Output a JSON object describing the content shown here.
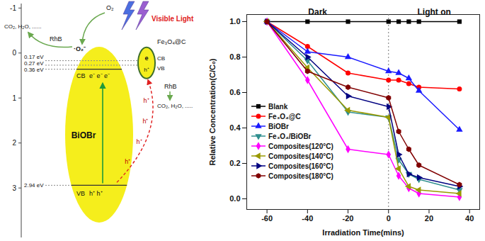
{
  "diagram": {
    "ylim": [
      -1.1,
      4.1
    ],
    "yticks": [
      -1,
      0,
      1,
      2,
      3
    ],
    "levels": [
      {
        "value": 0.17,
        "label": "0.17 eV"
      },
      {
        "value": 0.27,
        "label": "0.27 eV"
      },
      {
        "value": 0.36,
        "label": "0.36 eV"
      },
      {
        "value": 2.94,
        "label": "2.94 eV"
      }
    ],
    "light": "Visible Light",
    "main_band": {
      "label": "BiOBr",
      "cb": "CB",
      "vb": "VB",
      "electrons": "e⁻ e⁻ e⁻",
      "holes": "h⁺ h⁺"
    },
    "small_band": {
      "label": "Fe₃O₄@C",
      "cb": "CB",
      "vb": "VB",
      "electron": "e",
      "hole": "h⁺"
    },
    "transfer_holes": [
      "h⁺",
      "h⁺",
      "h⁺",
      "h⁺"
    ],
    "left_reaction": {
      "oxidant": "O₂",
      "radical": "·O₂⁻",
      "pollutant": "RhB",
      "products": "CO₂, H₂O, ......"
    },
    "right_reaction": {
      "pollutant": "RhB",
      "products": "CO₂, H₂O, ....."
    }
  },
  "chart_data": {
    "type": "line",
    "x_label": "Irradiation Time(mins)",
    "y_label": "Relative Concentration(C/C₀)",
    "annotations": [
      "Dark",
      "Light on"
    ],
    "light_on": 0,
    "x": [
      -60,
      -40,
      -20,
      0,
      5,
      10,
      15,
      35
    ],
    "xlim": [
      -70,
      45
    ],
    "xticks": [
      -60,
      -40,
      -20,
      0,
      20,
      40
    ],
    "ylim": [
      -0.06,
      1.04
    ],
    "yticks": [
      {
        "value": 0,
        "label": "0.0"
      },
      {
        "value": 0.2,
        "label": "0.2"
      },
      {
        "value": 0.4,
        "label": "0.4"
      },
      {
        "value": 0.6,
        "label": "0.6"
      },
      {
        "value": 0.8,
        "label": "0.8"
      },
      {
        "value": 1,
        "label": "1.0"
      }
    ],
    "legend": "left",
    "series": [
      {
        "name": "Blank",
        "color": "#000000",
        "marker": "square",
        "values": [
          1.0,
          1.0,
          1.0,
          1.0,
          1.0,
          1.0,
          1.0,
          1.0
        ]
      },
      {
        "name": "Fe₃O₄@C",
        "color": "#ff0000",
        "marker": "circle",
        "values": [
          1.0,
          0.86,
          0.71,
          0.67,
          0.67,
          0.65,
          0.63,
          0.62
        ]
      },
      {
        "name": "BiOBr",
        "color": "#1a1aff",
        "marker": "triangle",
        "values": [
          1.0,
          0.83,
          0.8,
          0.72,
          0.71,
          0.68,
          0.61,
          0.39
        ]
      },
      {
        "name": "Fe₃O₄/BiOBr",
        "color": "#2f8f8f",
        "marker": "triangle-down",
        "values": [
          1.0,
          0.78,
          0.49,
          0.46,
          0.22,
          0.14,
          0.11,
          0.05
        ]
      },
      {
        "name": "Composites(120°C)",
        "color": "#ff00ff",
        "marker": "diamond",
        "values": [
          1.0,
          0.67,
          0.28,
          0.25,
          0.13,
          0.06,
          0.03,
          0.01
        ]
      },
      {
        "name": "Composites(140°C)",
        "color": "#999900",
        "marker": "triangle-left",
        "values": [
          1.0,
          0.74,
          0.5,
          0.46,
          0.17,
          0.07,
          0.05,
          0.03
        ]
      },
      {
        "name": "Composites(160°C)",
        "color": "#000080",
        "marker": "triangle-right",
        "values": [
          1.0,
          0.8,
          0.58,
          0.52,
          0.25,
          0.14,
          0.12,
          0.07
        ]
      },
      {
        "name": "Composites(180°C)",
        "color": "#800000",
        "marker": "hexagon",
        "values": [
          1.0,
          0.72,
          0.63,
          0.57,
          0.38,
          0.28,
          0.19,
          0.08
        ]
      }
    ]
  }
}
